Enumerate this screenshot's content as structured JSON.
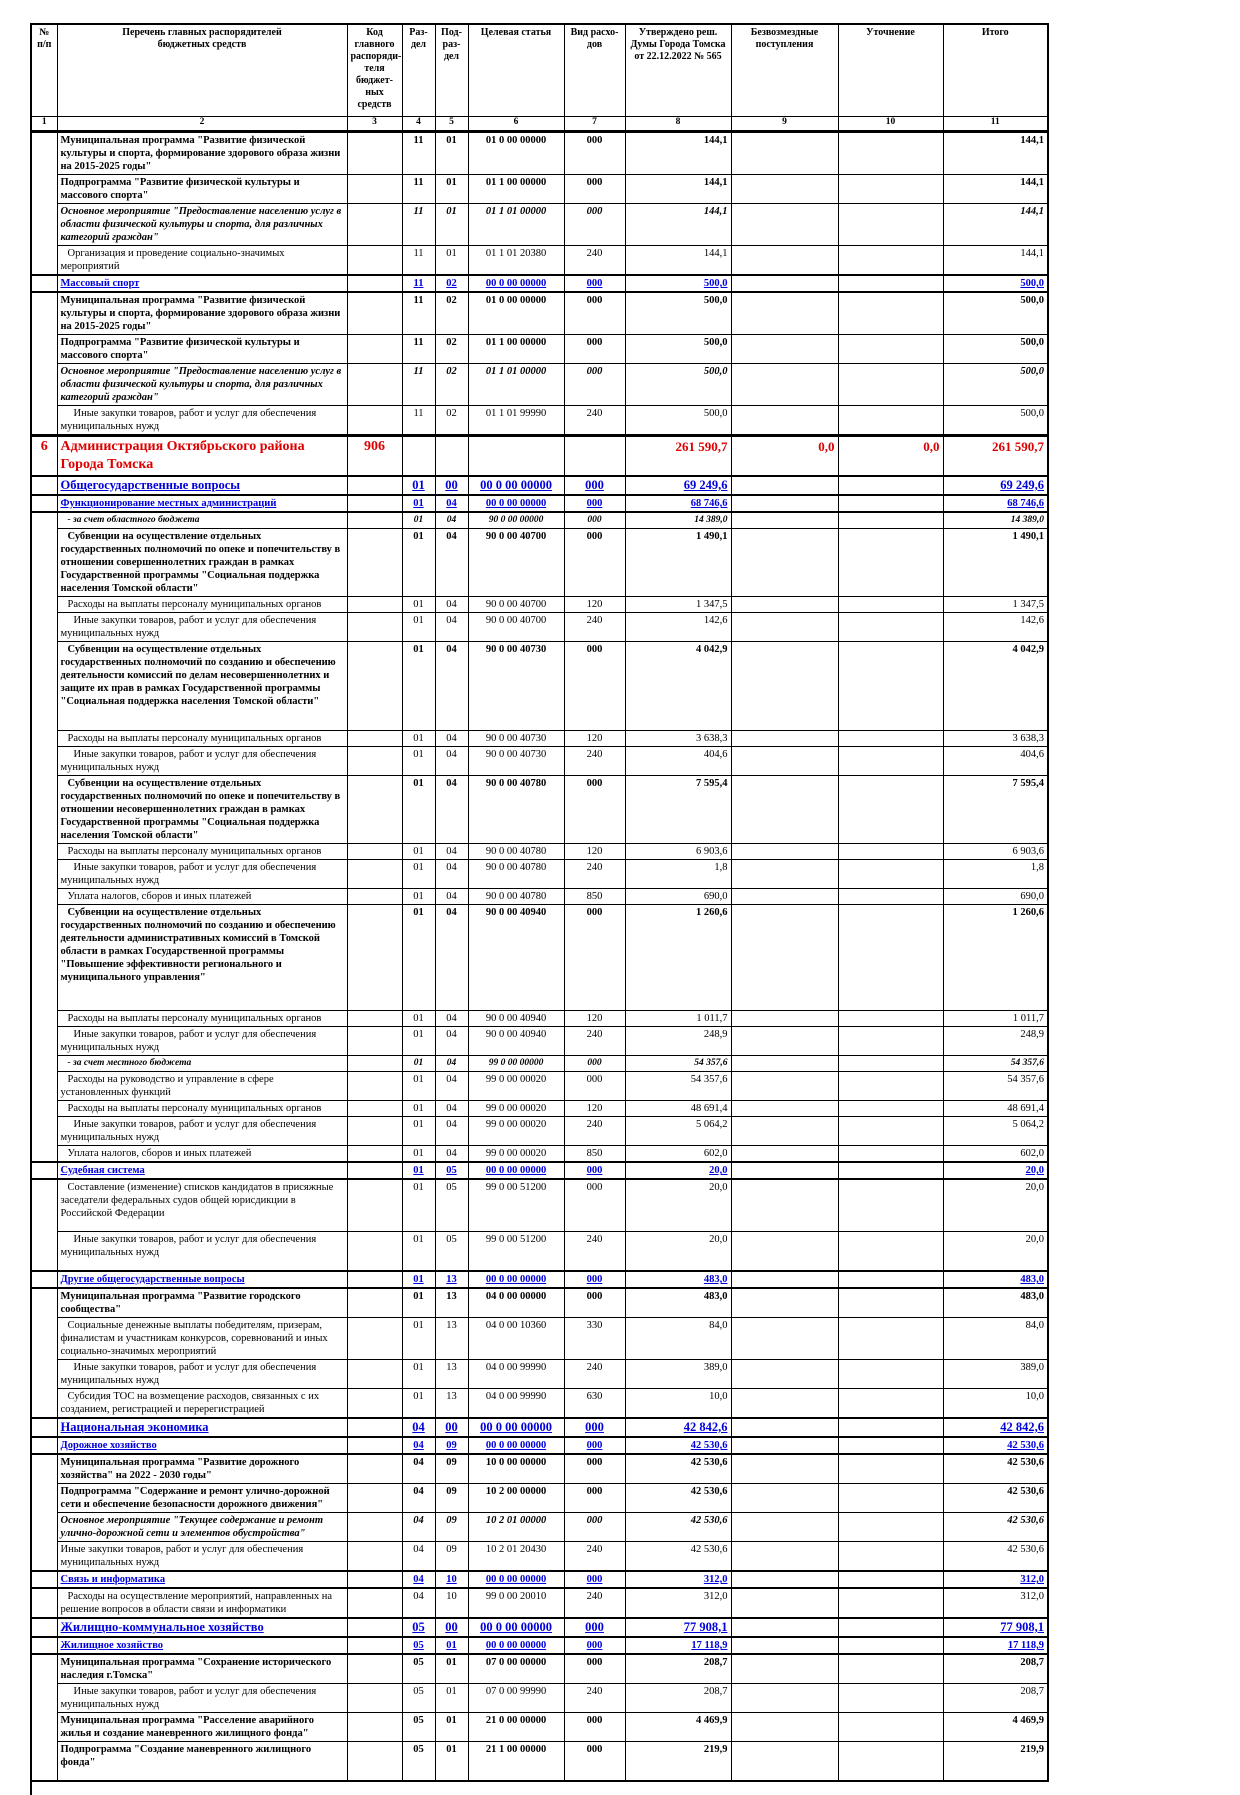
{
  "header": {
    "cols": [
      "№\nп/п",
      "Перечень главных распорядителей\nбюджетных средств",
      "Код главного\nраспоряди-\nтеля бюджет-\nных средств",
      "Раз-\nдел",
      "Под-\nраз-\nдел",
      "Целевая статья",
      "Вид расхо-\nдов",
      "Утверждено реш. Думы Города Томска от 22.12.2022 № 565",
      "Безвозмездные поступления",
      "Уточнение",
      "Итого"
    ],
    "index": [
      "1",
      "2",
      "3",
      "4",
      "5",
      "6",
      "7",
      "8",
      "9",
      "10",
      "11"
    ]
  },
  "colors": {
    "section_blue": "#0000dd",
    "main_red": "#dd0000"
  },
  "rows": [
    {
      "num": "",
      "label": "Муниципальная программа \"Развитие физической культуры и спорта, формирование здорового образа жизни на 2015-2025 годы\"",
      "code": "",
      "rz": "11",
      "pr": "01",
      "cs": "01 0 00 00000",
      "vr": "000",
      "approved": "144,1",
      "gratuitous": "",
      "adjustment": "",
      "total": "144,1",
      "style": "bold"
    },
    {
      "num": "",
      "label": "Подпрограмма \"Развитие физической культуры и массового спорта\"",
      "code": "",
      "rz": "11",
      "pr": "01",
      "cs": "01 1 00 00000",
      "vr": "000",
      "approved": "144,1",
      "gratuitous": "",
      "adjustment": "",
      "total": "144,1",
      "style": "bold"
    },
    {
      "num": "",
      "label": "Основное мероприятие \"Предоставление населению услуг в области физической культуры и спорта, для различных категорий граждан\"",
      "code": "",
      "rz": "11",
      "pr": "01",
      "cs": "01 1 01 00000",
      "vr": "000",
      "approved": "144,1",
      "gratuitous": "",
      "adjustment": "",
      "total": "144,1",
      "style": "italic"
    },
    {
      "num": "",
      "label": "Организация и проведение социально-значимых мероприятий",
      "code": "",
      "rz": "11",
      "pr": "01",
      "cs": "01 1 01 20380",
      "vr": "240",
      "approved": "144,1",
      "gratuitous": "",
      "adjustment": "",
      "total": "144,1",
      "style": "normal",
      "indent": 1
    },
    {
      "num": "",
      "label": "Массовый спорт",
      "code": "",
      "rz": "11",
      "pr": "02",
      "cs": "00 0 00 00000",
      "vr": "000",
      "approved": "500,0",
      "gratuitous": "",
      "adjustment": "",
      "total": "500,0",
      "style": "section"
    },
    {
      "num": "",
      "label": "Муниципальная программа \"Развитие физической культуры и спорта, формирование здорового образа жизни на 2015-2025 годы\"",
      "code": "",
      "rz": "11",
      "pr": "02",
      "cs": "01 0 00 00000",
      "vr": "000",
      "approved": "500,0",
      "gratuitous": "",
      "adjustment": "",
      "total": "500,0",
      "style": "bold"
    },
    {
      "num": "",
      "label": "Подпрограмма \"Развитие физической культуры и массового спорта\"",
      "code": "",
      "rz": "11",
      "pr": "02",
      "cs": "01 1 00 00000",
      "vr": "000",
      "approved": "500,0",
      "gratuitous": "",
      "adjustment": "",
      "total": "500,0",
      "style": "bold"
    },
    {
      "num": "",
      "label": "Основное мероприятие \"Предоставление населению услуг в области физической культуры и спорта, для различных категорий граждан\"",
      "code": "",
      "rz": "11",
      "pr": "02",
      "cs": "01 1 01 00000",
      "vr": "000",
      "approved": "500,0",
      "gratuitous": "",
      "adjustment": "",
      "total": "500,0",
      "style": "italic"
    },
    {
      "num": "",
      "label": "Иные закупки товаров, работ и услуг для обеспечения муниципальных нужд",
      "code": "",
      "rz": "11",
      "pr": "02",
      "cs": "01 1 01 99990",
      "vr": "240",
      "approved": "500,0",
      "gratuitous": "",
      "adjustment": "",
      "total": "500,0",
      "style": "normal",
      "indent": 2
    },
    {
      "num": "6",
      "label": "Администрация Октябрьского района Города Томска",
      "code": "906",
      "rz": "",
      "pr": "",
      "cs": "",
      "vr": "",
      "approved": "261 590,7",
      "gratuitous": "0,0",
      "adjustment": "0,0",
      "total": "261 590,7",
      "style": "main"
    },
    {
      "num": "",
      "label": "Общегосударственные вопросы",
      "code": "",
      "rz": "01",
      "pr": "00",
      "cs": "00 0 00 00000",
      "vr": "000",
      "approved": "69 249,6",
      "gratuitous": "",
      "adjustment": "",
      "total": "69 249,6",
      "style": "section-lg"
    },
    {
      "num": "",
      "label": "Функционирование местных администраций",
      "code": "",
      "rz": "01",
      "pr": "04",
      "cs": "00 0 00 00000",
      "vr": "000",
      "approved": "68 746,6",
      "gratuitous": "",
      "adjustment": "",
      "total": "68 746,6",
      "style": "section"
    },
    {
      "num": "",
      "label": "- за счет областного бюджета",
      "code": "",
      "rz": "01",
      "pr": "04",
      "cs": "90 0 00 00000",
      "vr": "000",
      "approved": "14 389,0",
      "gratuitous": "",
      "adjustment": "",
      "total": "14 389,0",
      "style": "note",
      "indent": 1
    },
    {
      "num": "",
      "label": "Субвенции на осуществление отдельных государственных полномочий по опеке и попечительству в отношении совершеннолетних граждан в рамках Государственной программы \"Социальная поддержка населения Томской области\"",
      "code": "",
      "rz": "01",
      "pr": "04",
      "cs": "90 0 00 40700",
      "vr": "000",
      "approved": "1 490,1",
      "gratuitous": "",
      "adjustment": "",
      "total": "1 490,1",
      "style": "bold",
      "indent": 1
    },
    {
      "num": "",
      "label": "Расходы на выплаты персоналу муниципальных органов",
      "code": "",
      "rz": "01",
      "pr": "04",
      "cs": "90 0 00 40700",
      "vr": "120",
      "approved": "1 347,5",
      "gratuitous": "",
      "adjustment": "",
      "total": "1 347,5",
      "style": "normal",
      "indent": 1
    },
    {
      "num": "",
      "label": "Иные закупки товаров, работ и услуг для обеспечения муниципальных нужд",
      "code": "",
      "rz": "01",
      "pr": "04",
      "cs": "90 0 00 40700",
      "vr": "240",
      "approved": "142,6",
      "gratuitous": "",
      "adjustment": "",
      "total": "142,6",
      "style": "normal",
      "indent": 2
    },
    {
      "num": "",
      "label": "Субвенции на осуществление отдельных государственных полномочий по созданию и обеспечению деятельности комиссий по делам несовершеннолетних и защите их прав в рамках Государственной программы \"Социальная поддержка населения Томской области\"",
      "code": "",
      "rz": "01",
      "pr": "04",
      "cs": "90 0 00 40730",
      "vr": "000",
      "approved": "4 042,9",
      "gratuitous": "",
      "adjustment": "",
      "total": "4 042,9",
      "style": "bold",
      "indent": 1,
      "spacer": "lg"
    },
    {
      "num": "",
      "label": "Расходы на выплаты персоналу муниципальных органов",
      "code": "",
      "rz": "01",
      "pr": "04",
      "cs": "90 0 00 40730",
      "vr": "120",
      "approved": "3 638,3",
      "gratuitous": "",
      "adjustment": "",
      "total": "3 638,3",
      "style": "normal",
      "indent": 1
    },
    {
      "num": "",
      "label": "Иные закупки товаров, работ и услуг для обеспечения муниципальных нужд",
      "code": "",
      "rz": "01",
      "pr": "04",
      "cs": "90 0 00 40730",
      "vr": "240",
      "approved": "404,6",
      "gratuitous": "",
      "adjustment": "",
      "total": "404,6",
      "style": "normal",
      "indent": 2
    },
    {
      "num": "",
      "label": "Субвенции на осуществление отдельных государственных полномочий по опеке и попечительству в отношении несовершеннолетних граждан в рамках Государственной программы \"Социальная поддержка населения Томской области\"",
      "code": "",
      "rz": "01",
      "pr": "04",
      "cs": "90 0 00 40780",
      "vr": "000",
      "approved": "7 595,4",
      "gratuitous": "",
      "adjustment": "",
      "total": "7 595,4",
      "style": "bold",
      "indent": 1
    },
    {
      "num": "",
      "label": "Расходы на выплаты персоналу муниципальных органов",
      "code": "",
      "rz": "01",
      "pr": "04",
      "cs": "90 0 00 40780",
      "vr": "120",
      "approved": "6 903,6",
      "gratuitous": "",
      "adjustment": "",
      "total": "6 903,6",
      "style": "normal",
      "indent": 1
    },
    {
      "num": "",
      "label": "Иные закупки товаров, работ и услуг для обеспечения муниципальных нужд",
      "code": "",
      "rz": "01",
      "pr": "04",
      "cs": "90 0 00 40780",
      "vr": "240",
      "approved": "1,8",
      "gratuitous": "",
      "adjustment": "",
      "total": "1,8",
      "style": "normal",
      "indent": 2
    },
    {
      "num": "",
      "label": "Уплата налогов, сборов и иных платежей",
      "code": "",
      "rz": "01",
      "pr": "04",
      "cs": "90 0 00 40780",
      "vr": "850",
      "approved": "690,0",
      "gratuitous": "",
      "adjustment": "",
      "total": "690,0",
      "style": "normal",
      "indent": 1
    },
    {
      "num": "",
      "label": "Субвенции на осуществление отдельных государственных полномочий по созданию и обеспечению деятельности административных комиссий в Томской области в рамках Государственной программы \"Повышение эффективности регионального и муниципального управления\"",
      "code": "",
      "rz": "01",
      "pr": "04",
      "cs": "90 0 00 40940",
      "vr": "000",
      "approved": "1 260,6",
      "gratuitous": "",
      "adjustment": "",
      "total": "1 260,6",
      "style": "bold",
      "indent": 1,
      "spacer": "xl"
    },
    {
      "num": "",
      "label": "Расходы на выплаты персоналу муниципальных органов",
      "code": "",
      "rz": "01",
      "pr": "04",
      "cs": "90 0 00 40940",
      "vr": "120",
      "approved": "1 011,7",
      "gratuitous": "",
      "adjustment": "",
      "total": "1 011,7",
      "style": "normal",
      "indent": 1
    },
    {
      "num": "",
      "label": "Иные закупки товаров, работ и услуг для обеспечения муниципальных нужд",
      "code": "",
      "rz": "01",
      "pr": "04",
      "cs": "90 0 00 40940",
      "vr": "240",
      "approved": "248,9",
      "gratuitous": "",
      "adjustment": "",
      "total": "248,9",
      "style": "normal",
      "indent": 2
    },
    {
      "num": "",
      "label": "- за счет местного бюджета",
      "code": "",
      "rz": "01",
      "pr": "04",
      "cs": "99 0 00 00000",
      "vr": "000",
      "approved": "54 357,6",
      "gratuitous": "",
      "adjustment": "",
      "total": "54 357,6",
      "style": "note",
      "indent": 1
    },
    {
      "num": "",
      "label": "Расходы на руководство и управление в сфере установленных функций",
      "code": "",
      "rz": "01",
      "pr": "04",
      "cs": "99 0 00 00020",
      "vr": "000",
      "approved": "54 357,6",
      "gratuitous": "",
      "adjustment": "",
      "total": "54 357,6",
      "style": "normal",
      "indent": 1
    },
    {
      "num": "",
      "label": "Расходы на выплаты персоналу муниципальных органов",
      "code": "",
      "rz": "01",
      "pr": "04",
      "cs": "99 0 00 00020",
      "vr": "120",
      "approved": "48 691,4",
      "gratuitous": "",
      "adjustment": "",
      "total": "48 691,4",
      "style": "normal",
      "indent": 1
    },
    {
      "num": "",
      "label": "Иные закупки товаров, работ и услуг для обеспечения муниципальных нужд",
      "code": "",
      "rz": "01",
      "pr": "04",
      "cs": "99 0 00 00020",
      "vr": "240",
      "approved": "5 064,2",
      "gratuitous": "",
      "adjustment": "",
      "total": "5 064,2",
      "style": "normal",
      "indent": 2
    },
    {
      "num": "",
      "label": "Уплата налогов, сборов и иных платежей",
      "code": "",
      "rz": "01",
      "pr": "04",
      "cs": "99 0 00 00020",
      "vr": "850",
      "approved": "602,0",
      "gratuitous": "",
      "adjustment": "",
      "total": "602,0",
      "style": "normal",
      "indent": 1
    },
    {
      "num": "",
      "label": "Судебная система",
      "code": "",
      "rz": "01",
      "pr": "05",
      "cs": "00 0 00 00000",
      "vr": "000",
      "approved": "20,0",
      "gratuitous": "",
      "adjustment": "",
      "total": "20,0",
      "style": "section"
    },
    {
      "num": "",
      "label": "Составление (изменение) списков кандидатов в присяжные заседатели федеральных судов общей юрисдикции в Российской Федерации",
      "code": "",
      "rz": "01",
      "pr": "05",
      "cs": "99 0 00 51200",
      "vr": "000",
      "approved": "20,0",
      "gratuitous": "",
      "adjustment": "",
      "total": "20,0",
      "style": "normal",
      "indent": 1,
      "spacer": "sm"
    },
    {
      "num": "",
      "label": "Иные закупки товаров, работ и услуг для обеспечения муниципальных нужд",
      "code": "",
      "rz": "01",
      "pr": "05",
      "cs": "99 0 00 51200",
      "vr": "240",
      "approved": "20,0",
      "gratuitous": "",
      "adjustment": "",
      "total": "20,0",
      "style": "normal",
      "indent": 2,
      "spacer": "sm"
    },
    {
      "num": "",
      "label": "Другие общегосударственные вопросы",
      "code": "",
      "rz": "01",
      "pr": "13",
      "cs": "00 0 00 00000",
      "vr": "000",
      "approved": "483,0",
      "gratuitous": "",
      "adjustment": "",
      "total": "483,0",
      "style": "section"
    },
    {
      "num": "",
      "label": "Муниципальная программа \"Развитие городского сообщества\"",
      "code": "",
      "rz": "01",
      "pr": "13",
      "cs": "04 0 00 00000",
      "vr": "000",
      "approved": "483,0",
      "gratuitous": "",
      "adjustment": "",
      "total": "483,0",
      "style": "bold"
    },
    {
      "num": "",
      "label": "Социальные денежные выплаты победителям, призерам, финалистам и участникам конкурсов, соревнований и иных социально-значимых мероприятий",
      "code": "",
      "rz": "01",
      "pr": "13",
      "cs": "04 0 00 10360",
      "vr": "330",
      "approved": "84,0",
      "gratuitous": "",
      "adjustment": "",
      "total": "84,0",
      "style": "normal",
      "indent": 1
    },
    {
      "num": "",
      "label": "Иные закупки товаров, работ и услуг для обеспечения муниципальных нужд",
      "code": "",
      "rz": "01",
      "pr": "13",
      "cs": "04 0 00 99990",
      "vr": "240",
      "approved": "389,0",
      "gratuitous": "",
      "adjustment": "",
      "total": "389,0",
      "style": "normal",
      "indent": 2
    },
    {
      "num": "",
      "label": "Субсидия ТОС на возмещение расходов, связанных с их созданием, регистрацией и перерегистрацией",
      "code": "",
      "rz": "01",
      "pr": "13",
      "cs": "04 0 00 99990",
      "vr": "630",
      "approved": "10,0",
      "gratuitous": "",
      "adjustment": "",
      "total": "10,0",
      "style": "normal",
      "indent": 1
    },
    {
      "num": "",
      "label": "Национальная экономика",
      "code": "",
      "rz": "04",
      "pr": "00",
      "cs": "00 0 00 00000",
      "vr": "000",
      "approved": "42 842,6",
      "gratuitous": "",
      "adjustment": "",
      "total": "42 842,6",
      "style": "section-lg"
    },
    {
      "num": "",
      "label": "Дорожное хозяйство",
      "code": "",
      "rz": "04",
      "pr": "09",
      "cs": "00 0 00 00000",
      "vr": "000",
      "approved": "42 530,6",
      "gratuitous": "",
      "adjustment": "",
      "total": "42 530,6",
      "style": "section"
    },
    {
      "num": "",
      "label": "Муниципальная программа \"Развитие дорожного хозяйства\" на 2022 - 2030 годы\"",
      "code": "",
      "rz": "04",
      "pr": "09",
      "cs": "10 0 00 00000",
      "vr": "000",
      "approved": "42 530,6",
      "gratuitous": "",
      "adjustment": "",
      "total": "42 530,6",
      "style": "bold"
    },
    {
      "num": "",
      "label": "Подпрограмма \"Содержание и ремонт улично-дорожной сети и обеспечение безопасности дорожного движения\"",
      "code": "",
      "rz": "04",
      "pr": "09",
      "cs": "10 2 00 00000",
      "vr": "000",
      "approved": "42 530,6",
      "gratuitous": "",
      "adjustment": "",
      "total": "42 530,6",
      "style": "bold"
    },
    {
      "num": "",
      "label": "Основное мероприятие \"Текущее содержание и ремонт улично-дорожной сети и элементов обустройства\"",
      "code": "",
      "rz": "04",
      "pr": "09",
      "cs": "10 2 01 00000",
      "vr": "000",
      "approved": "42 530,6",
      "gratuitous": "",
      "adjustment": "",
      "total": "42 530,6",
      "style": "italic"
    },
    {
      "num": "",
      "label": "Иные закупки товаров, работ и услуг для обеспечения муниципальных нужд",
      "code": "",
      "rz": "04",
      "pr": "09",
      "cs": "10 2 01 20430",
      "vr": "240",
      "approved": "42 530,6",
      "gratuitous": "",
      "adjustment": "",
      "total": "42 530,6",
      "style": "normal"
    },
    {
      "num": "",
      "label": "Связь и информатика",
      "code": "",
      "rz": "04",
      "pr": "10",
      "cs": "00 0 00 00000",
      "vr": "000",
      "approved": "312,0",
      "gratuitous": "",
      "adjustment": "",
      "total": "312,0",
      "style": "section"
    },
    {
      "num": "",
      "label": "Расходы на осуществление мероприятий, направленных на решение вопросов в области связи и информатики",
      "code": "",
      "rz": "04",
      "pr": "10",
      "cs": "99 0 00 20010",
      "vr": "240",
      "approved": "312,0",
      "gratuitous": "",
      "adjustment": "",
      "total": "312,0",
      "style": "normal",
      "indent": 1
    },
    {
      "num": "",
      "label": "Жилищно-коммунальное хозяйство",
      "code": "",
      "rz": "05",
      "pr": "00",
      "cs": "00 0 00 00000",
      "vr": "000",
      "approved": "77 908,1",
      "gratuitous": "",
      "adjustment": "",
      "total": "77 908,1",
      "style": "section-lg"
    },
    {
      "num": "",
      "label": "Жилищное хозяйство",
      "code": "",
      "rz": "05",
      "pr": "01",
      "cs": "00 0 00 00000",
      "vr": "000",
      "approved": "17 118,9",
      "gratuitous": "",
      "adjustment": "",
      "total": "17 118,9",
      "style": "section"
    },
    {
      "num": "",
      "label": "Муниципальная программа \"Сохранение исторического наследия г.Томска\"",
      "code": "",
      "rz": "05",
      "pr": "01",
      "cs": "07 0 00 00000",
      "vr": "000",
      "approved": "208,7",
      "gratuitous": "",
      "adjustment": "",
      "total": "208,7",
      "style": "bold"
    },
    {
      "num": "",
      "label": "Иные закупки товаров, работ и услуг для обеспечения муниципальных нужд",
      "code": "",
      "rz": "05",
      "pr": "01",
      "cs": "07 0 00 99990",
      "vr": "240",
      "approved": "208,7",
      "gratuitous": "",
      "adjustment": "",
      "total": "208,7",
      "style": "normal",
      "indent": 2
    },
    {
      "num": "",
      "label": "Муниципальная программа \"Расселение аварийного жилья и создание маневренного жилищного фонда\"",
      "code": "",
      "rz": "05",
      "pr": "01",
      "cs": "21 0 00 00000",
      "vr": "000",
      "approved": "4 469,9",
      "gratuitous": "",
      "adjustment": "",
      "total": "4 469,9",
      "style": "bold"
    },
    {
      "num": "",
      "label": "Подпрограмма \"Создание маневренного жилищного фонда\"",
      "code": "",
      "rz": "05",
      "pr": "01",
      "cs": "21 1 00 00000",
      "vr": "000",
      "approved": "219,9",
      "gratuitous": "",
      "adjustment": "",
      "total": "219,9",
      "style": "bold",
      "spacer": "sm"
    }
  ]
}
